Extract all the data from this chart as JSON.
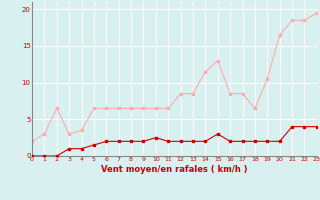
{
  "x": [
    0,
    1,
    2,
    3,
    4,
    5,
    6,
    7,
    8,
    9,
    10,
    11,
    12,
    13,
    14,
    15,
    16,
    17,
    18,
    19,
    20,
    21,
    22,
    23
  ],
  "wind_avg": [
    0,
    0,
    0,
    1,
    1,
    1.5,
    2,
    2,
    2,
    2,
    2.5,
    2,
    2,
    2,
    2,
    3,
    2,
    2,
    2,
    2,
    2,
    4,
    4,
    4
  ],
  "wind_gust": [
    2,
    3,
    6.5,
    3,
    3.5,
    6.5,
    6.5,
    6.5,
    6.5,
    6.5,
    6.5,
    6.5,
    8.5,
    8.5,
    11.5,
    13,
    8.5,
    8.5,
    6.5,
    10.5,
    16.5,
    18.5,
    18.5,
    19.5
  ],
  "avg_color": "#cc0000",
  "gust_color": "#ffaaaa",
  "background_color": "#d8f0f0",
  "grid_color": "#ffffff",
  "xlabel": "Vent moyen/en rafales ( km/h )",
  "ylim": [
    0,
    21
  ],
  "xlim": [
    0,
    23
  ],
  "yticks": [
    0,
    5,
    10,
    15,
    20
  ],
  "xticks": [
    0,
    1,
    2,
    3,
    4,
    5,
    6,
    7,
    8,
    9,
    10,
    11,
    12,
    13,
    14,
    15,
    16,
    17,
    18,
    19,
    20,
    21,
    22,
    23
  ],
  "spine_color": "#888888",
  "tick_fontsize": 5,
  "xlabel_fontsize": 6
}
